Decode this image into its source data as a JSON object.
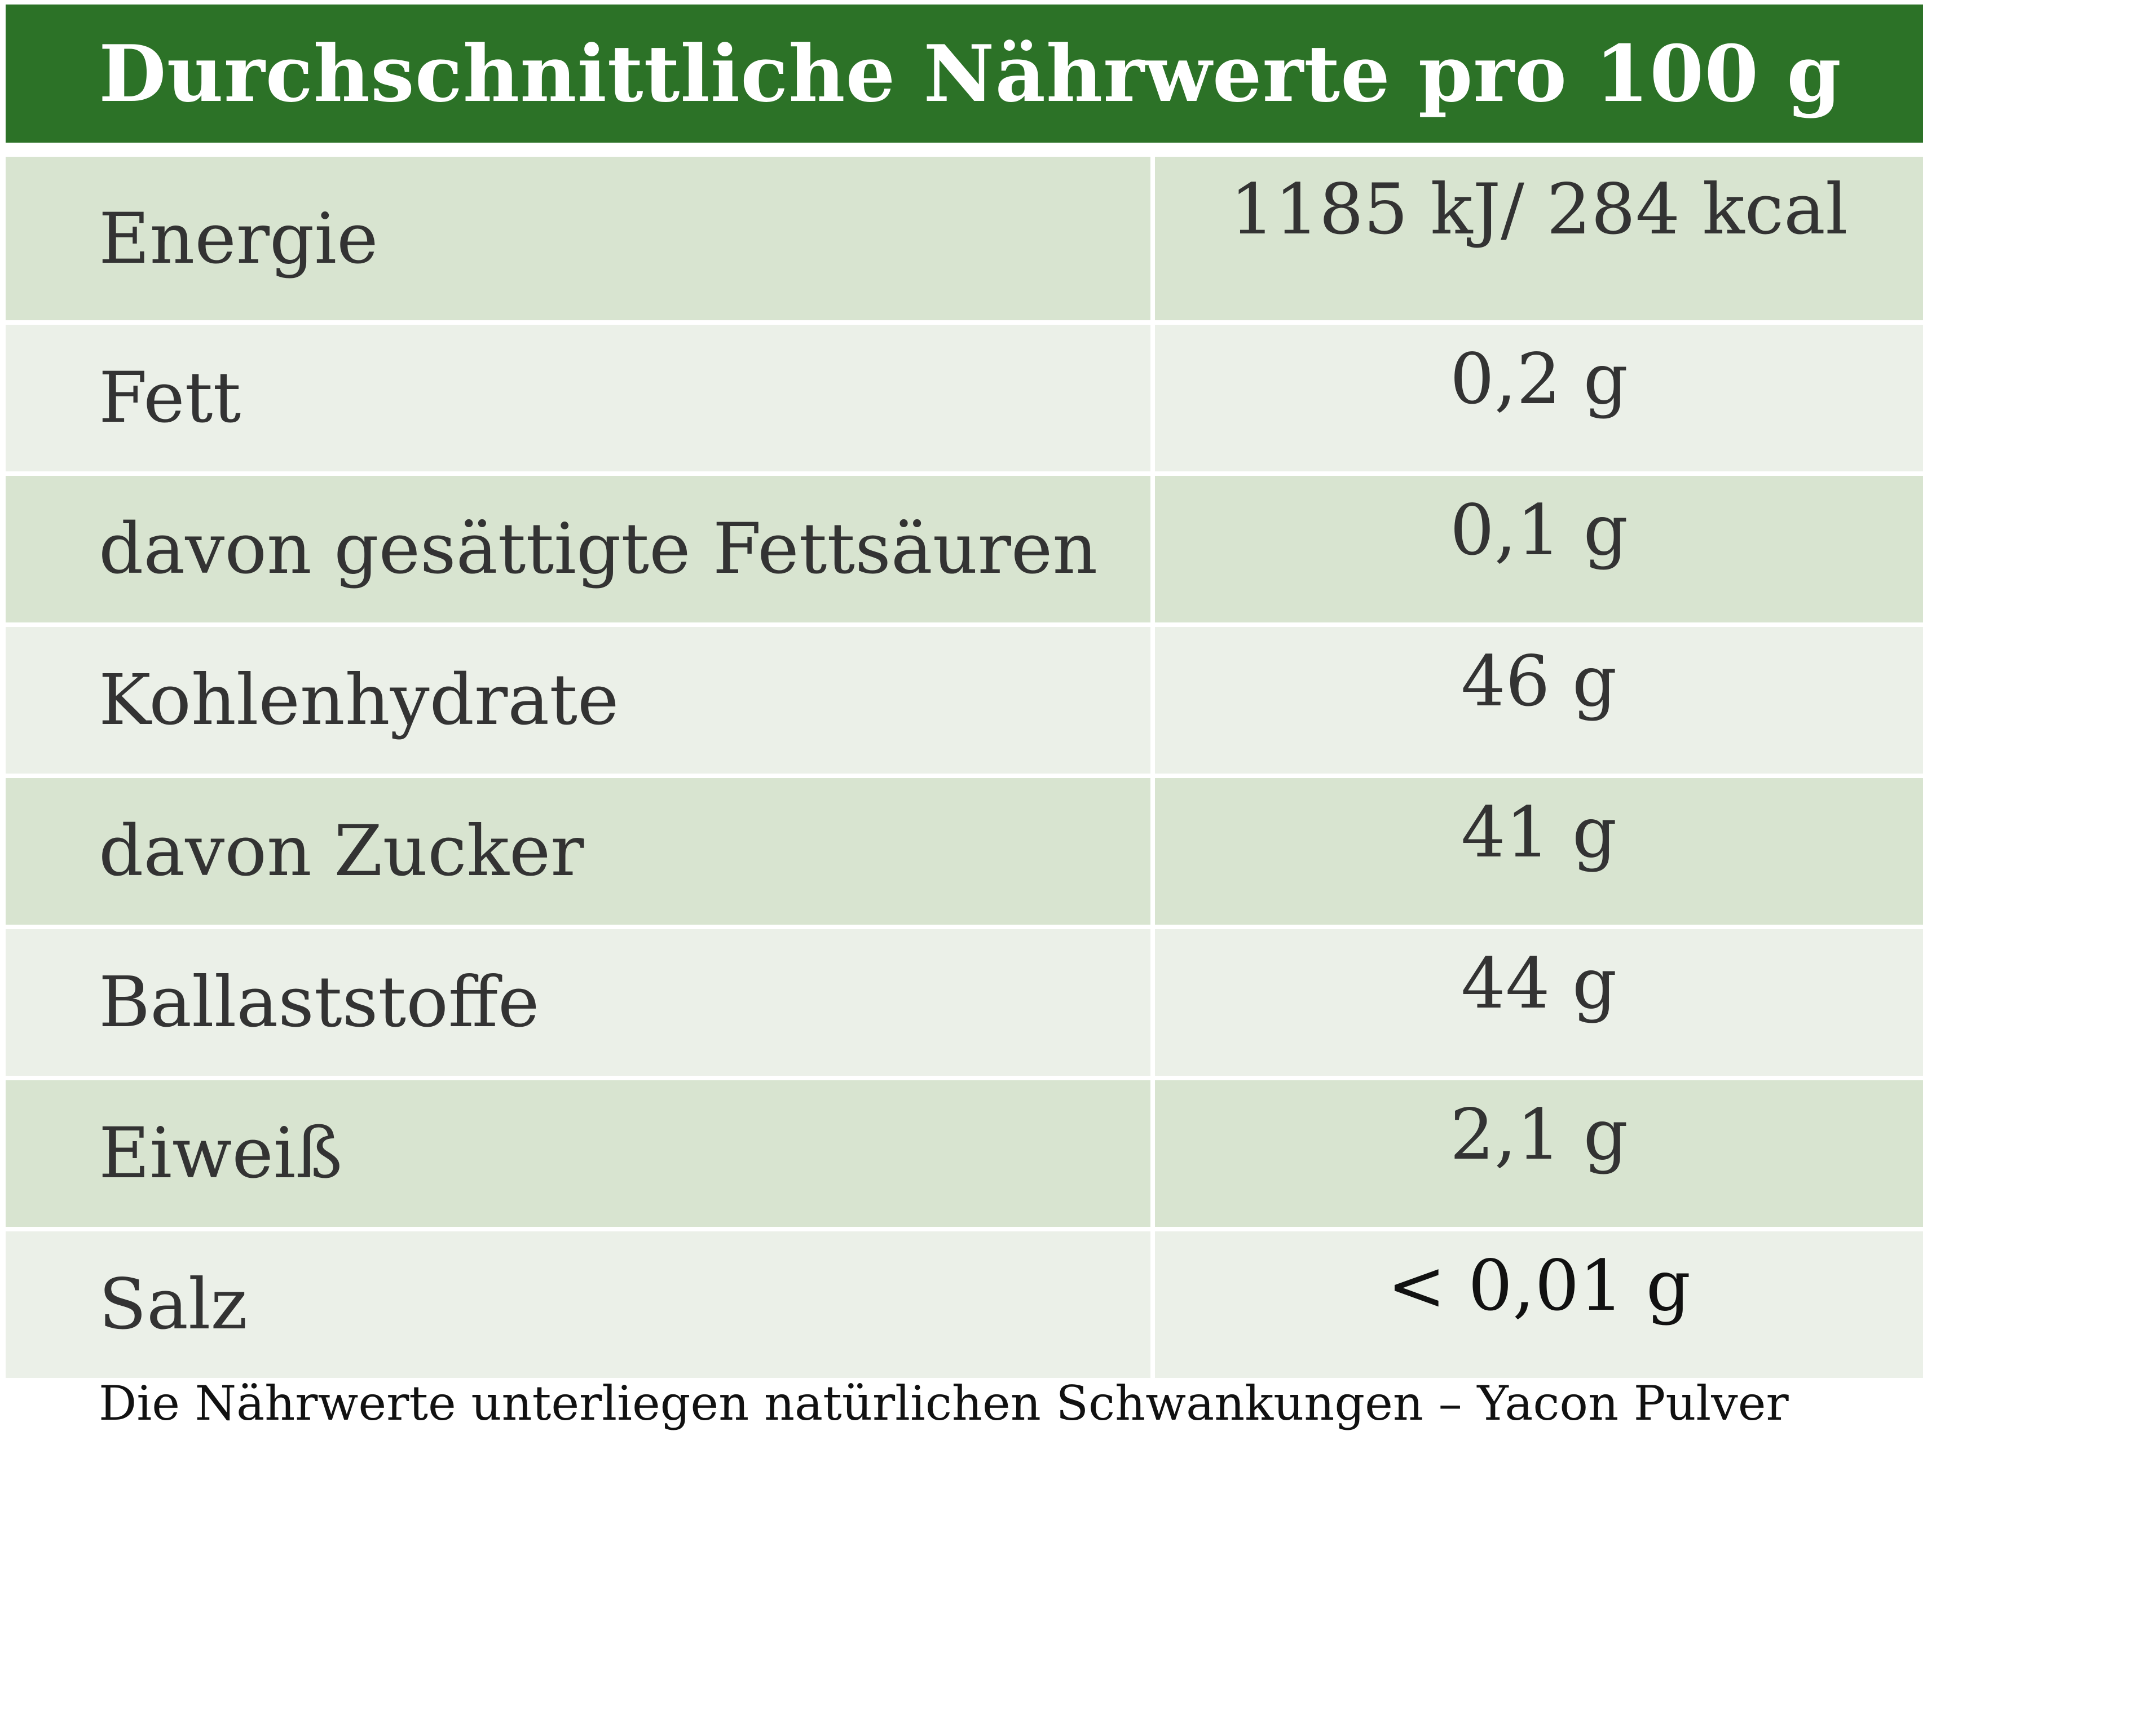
{
  "title": "Durchschnittliche Nährwerte pro 100 g",
  "rows": [
    {
      "label": "Energie",
      "value": "1185 kJ/ 284 kcal"
    },
    {
      "label": "Fett",
      "value": "0,2 g"
    },
    {
      "label": "davon gesättigte Fettsäuren",
      "value": "0,1 g"
    },
    {
      "label": "Kohlenhydrate",
      "value": "46 g"
    },
    {
      "label": "davon Zucker",
      "value": "41 g"
    },
    {
      "label": "Ballaststoffe",
      "value": "44 g"
    },
    {
      "label": "Eiweiß",
      "value": "2,1 g"
    },
    {
      "label": "Salz",
      "value": "< 0,01 g"
    }
  ],
  "footnote": "Die Nährwerte unterliegen natürlichen Schwankungen – Yacon Pulver",
  "colors": {
    "header_bg": "#2c7227",
    "row_dark": "#d8e4d0",
    "row_light": "#ebf0e8"
  }
}
